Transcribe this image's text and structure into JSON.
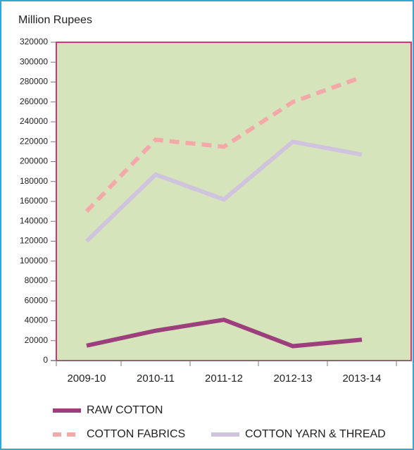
{
  "chart_data": {
    "type": "line",
    "y_label": "Million Rupees",
    "categories": [
      "2009-10",
      "2010-11",
      "2011-12",
      "2012-13",
      "2013-14"
    ],
    "series": [
      {
        "name": "RAW COTTON",
        "color": "#9c3f7c",
        "line_style": "solid",
        "values": [
          15000,
          30000,
          41000,
          14500,
          21000
        ]
      },
      {
        "name": "COTTON FABRICS",
        "color": "#f4a9a9",
        "line_style": "dashed",
        "values": [
          150000,
          222000,
          215000,
          260000,
          285000
        ]
      },
      {
        "name": "COTTON YARN & THREAD",
        "color": "#d0c3de",
        "line_style": "solid",
        "values": [
          120000,
          187000,
          162000,
          220000,
          207000
        ]
      }
    ],
    "ylim": [
      0,
      320000
    ],
    "yticks": [
      0,
      20000,
      40000,
      60000,
      80000,
      100000,
      120000,
      140000,
      160000,
      180000,
      200000,
      220000,
      240000,
      260000,
      280000,
      300000,
      320000
    ],
    "plot_background": "#d6e4bb",
    "plot_border": "#d9307d"
  }
}
